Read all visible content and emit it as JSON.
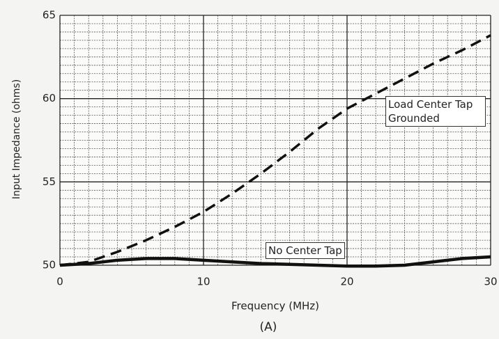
{
  "chart_data": {
    "type": "line",
    "xlabel": "Frequency (MHz)",
    "ylabel": "Input Impedance (ohms)",
    "caption": "(A)",
    "xlim": [
      0,
      30
    ],
    "ylim": [
      50,
      65
    ],
    "xticks": [
      0,
      10,
      20,
      30
    ],
    "yticks": [
      50,
      55,
      60,
      65
    ],
    "xminorticks": [
      1,
      2,
      3,
      4,
      5,
      6,
      7,
      8,
      9,
      11,
      12,
      13,
      14,
      15,
      16,
      17,
      18,
      19,
      21,
      22,
      23,
      24,
      25,
      26,
      27,
      28,
      29
    ],
    "yminorticks": [
      50.5,
      51,
      51.5,
      52,
      52.5,
      53,
      53.5,
      54,
      54.5,
      55.5,
      56,
      56.5,
      57,
      57.5,
      58,
      58.5,
      59,
      59.5,
      60.5,
      61,
      61.5,
      62,
      62.5,
      63,
      63.5,
      64,
      64.5
    ],
    "grid": true,
    "x": [
      0,
      2,
      4,
      6,
      8,
      10,
      12,
      14,
      16,
      18,
      20,
      22,
      24,
      26,
      28,
      30
    ],
    "series": [
      {
        "name": "Load Center Tap Grounded",
        "color": "#111111",
        "dash": true,
        "values": [
          50,
          50.2,
          50.8,
          51.5,
          52.3,
          53.2,
          54.3,
          55.5,
          56.8,
          58.2,
          59.4,
          60.3,
          61.2,
          62.1,
          62.9,
          63.8
        ]
      },
      {
        "name": "No Center Tap",
        "color": "#111111",
        "dash": false,
        "values": [
          50,
          50.1,
          50.3,
          50.4,
          50.4,
          50.3,
          50.2,
          50.1,
          50.05,
          50,
          49.95,
          49.95,
          50,
          50.2,
          50.4,
          50.5
        ]
      }
    ]
  }
}
